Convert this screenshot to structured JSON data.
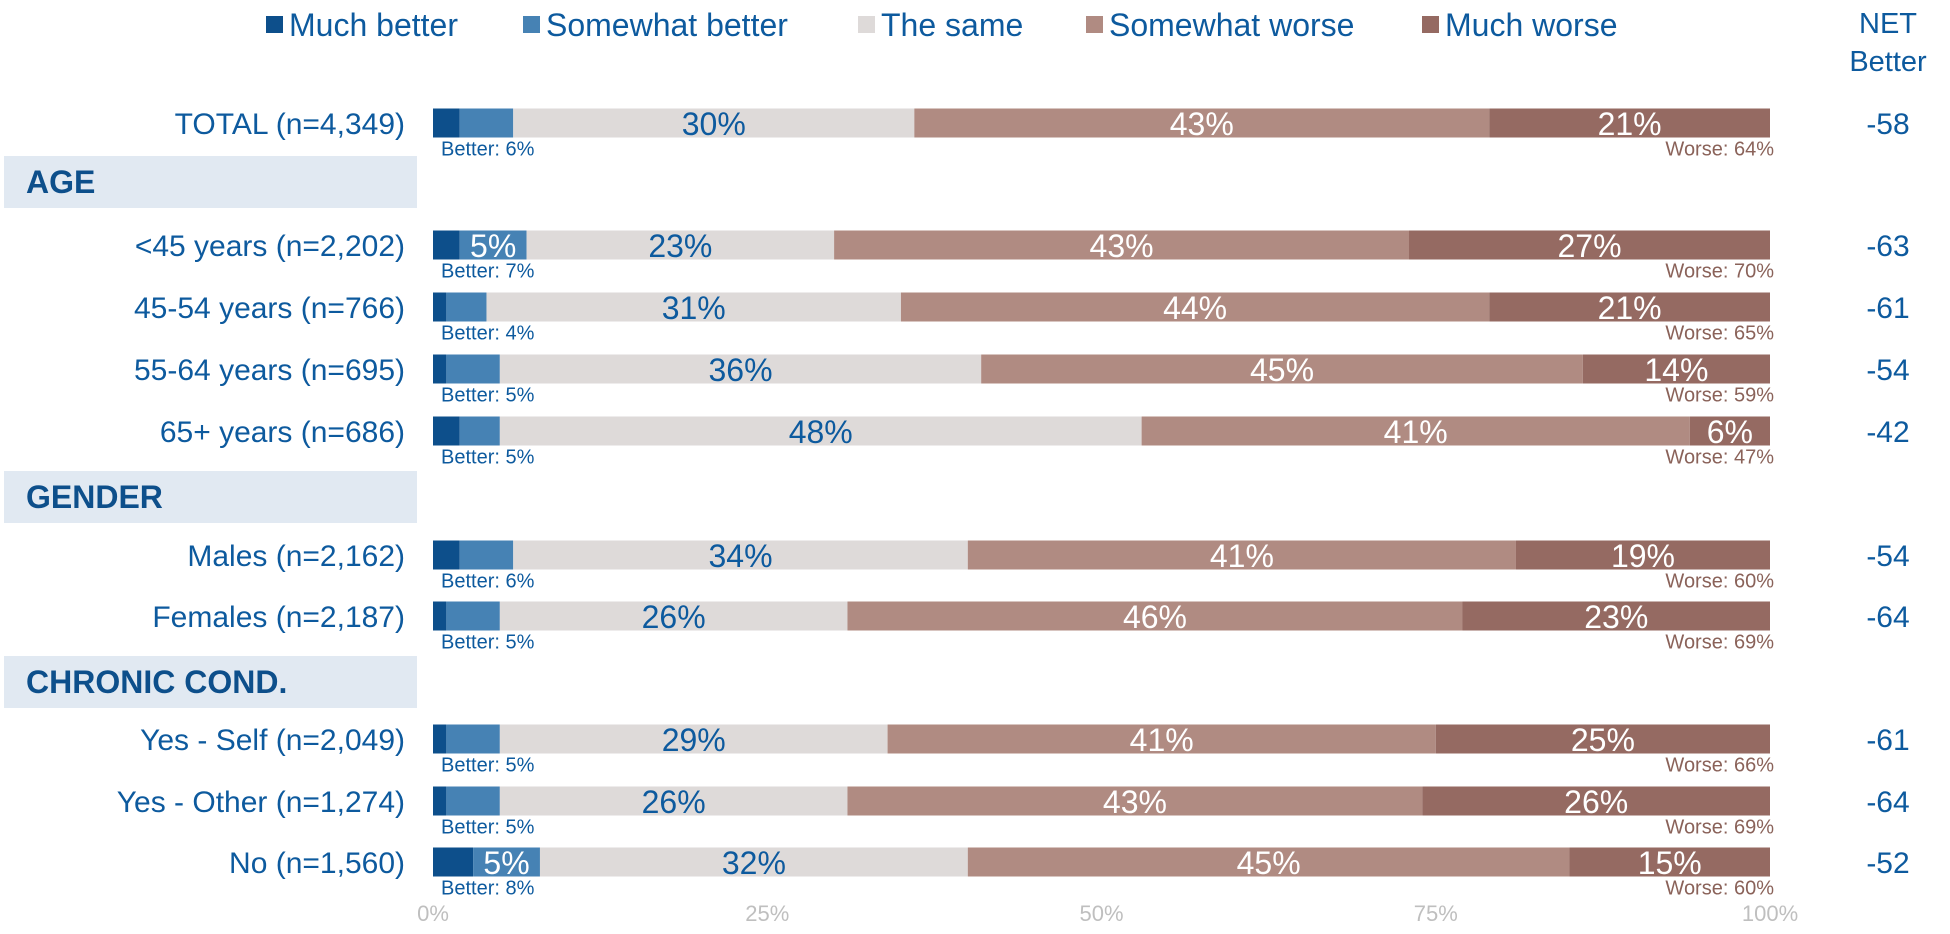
{
  "chart_data": {
    "type": "bar",
    "stacked": true,
    "orientation": "horizontal",
    "categories": [
      "TOTAL (n=4,349)",
      "<45 years (n=2,202)",
      "45-54 years (n=766)",
      "55-64 years (n=695)",
      "65+ years (n=686)",
      "Males (n=2,162)",
      "Females (n=2,187)",
      "Yes - Self (n=2,049)",
      "Yes - Other (n=1,274)",
      "No (n=1,560)"
    ],
    "groups": [
      {
        "label": "AGE",
        "before_row": 1
      },
      {
        "label": "GENDER",
        "before_row": 5
      },
      {
        "label": "CHRONIC COND.",
        "before_row": 7
      }
    ],
    "series": [
      {
        "name": "Much better",
        "color": "#0d4f8b",
        "values": [
          2,
          2,
          1,
          1,
          2,
          2,
          1,
          1,
          1,
          3
        ],
        "labels": [
          "",
          "",
          "",
          "",
          "",
          "",
          "",
          "",
          "",
          ""
        ]
      },
      {
        "name": "Somewhat better",
        "color": "#4682b4",
        "values": [
          4,
          5,
          3,
          4,
          3,
          4,
          4,
          4,
          4,
          5
        ],
        "labels": [
          "",
          "5%",
          "",
          "",
          "",
          "",
          "",
          "",
          "",
          "5%"
        ]
      },
      {
        "name": "The same",
        "color": "#dedad9",
        "values": [
          30,
          23,
          31,
          36,
          48,
          34,
          26,
          29,
          26,
          32
        ],
        "labels": [
          "30%",
          "23%",
          "31%",
          "36%",
          "48%",
          "34%",
          "26%",
          "29%",
          "26%",
          "32%"
        ]
      },
      {
        "name": "Somewhat worse",
        "color": "#b08b82",
        "values": [
          43,
          43,
          44,
          45,
          41,
          41,
          46,
          41,
          43,
          45
        ],
        "labels": [
          "43%",
          "43%",
          "44%",
          "45%",
          "41%",
          "41%",
          "46%",
          "41%",
          "43%",
          "45%"
        ]
      },
      {
        "name": "Much worse",
        "color": "#956a62",
        "values": [
          21,
          27,
          21,
          14,
          6,
          19,
          23,
          25,
          26,
          15
        ],
        "labels": [
          "21%",
          "27%",
          "21%",
          "14%",
          "6%",
          "19%",
          "23%",
          "25%",
          "26%",
          "15%"
        ]
      }
    ],
    "better_labels": [
      "Better: 6%",
      "Better: 7%",
      "Better: 4%",
      "Better: 5%",
      "Better: 5%",
      "Better: 6%",
      "Better: 5%",
      "Better: 5%",
      "Better: 5%",
      "Better: 8%"
    ],
    "worse_labels": [
      "Worse: 64%",
      "Worse: 70%",
      "Worse: 65%",
      "Worse: 59%",
      "Worse: 47%",
      "Worse: 60%",
      "Worse: 69%",
      "Worse: 66%",
      "Worse: 69%",
      "Worse: 60%"
    ],
    "net_header": [
      "NET",
      "Better"
    ],
    "net_values": [
      "-58",
      "-63",
      "-61",
      "-54",
      "-42",
      "-54",
      "-64",
      "-61",
      "-64",
      "-52"
    ],
    "x_ticks": [
      "0%",
      "25%",
      "50%",
      "75%",
      "100%"
    ],
    "xlim": [
      0,
      100
    ],
    "legend_position": "top"
  }
}
